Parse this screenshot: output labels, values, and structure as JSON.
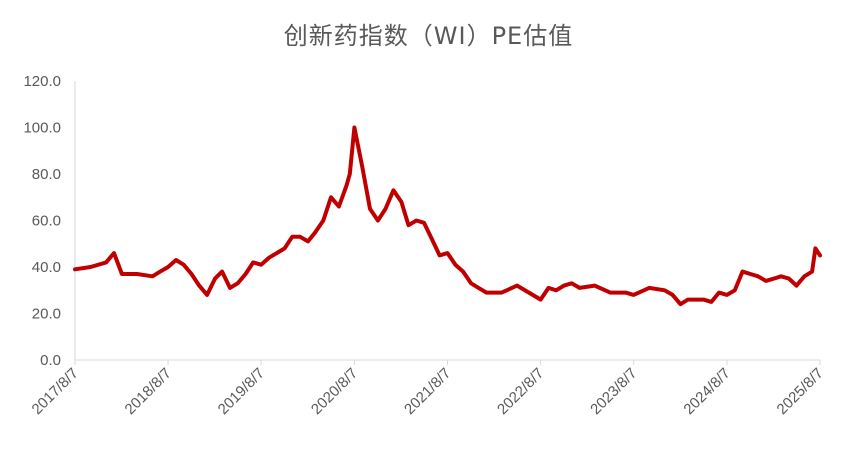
{
  "chart_data": {
    "type": "line",
    "title": "创新药指数（WI）PE估值",
    "xlabel": "",
    "ylabel": "",
    "ylim": [
      0,
      120
    ],
    "yticks": [
      "0.0",
      "20.0",
      "40.0",
      "60.0",
      "80.0",
      "100.0",
      "120.0"
    ],
    "xticks": [
      "2017/8/7",
      "2018/8/7",
      "2019/8/7",
      "2020/8/7",
      "2021/8/7",
      "2022/8/7",
      "2023/8/7",
      "2024/8/7",
      "2025/8/7"
    ],
    "grid": false,
    "legend": "none",
    "line_color": "#C00000",
    "series": [
      {
        "x": [
          "2017/8/7",
          "2017/10/7",
          "2017/12/7",
          "2018/1/7",
          "2018/2/7",
          "2018/4/7",
          "2018/6/7",
          "2018/7/7",
          "2018/8/7",
          "2018/9/7",
          "2018/10/7",
          "2018/11/7",
          "2018/12/7",
          "2019/1/7",
          "2019/2/7",
          "2019/3/7",
          "2019/4/7",
          "2019/5/7",
          "2019/6/7",
          "2019/7/7",
          "2019/8/7",
          "2019/9/7",
          "2019/10/7",
          "2019/11/7",
          "2019/12/7",
          "2020/1/7",
          "2020/2/7",
          "2020/3/7",
          "2020/4/7",
          "2020/5/7",
          "2020/6/7",
          "2020/7/7",
          "2020/7/20",
          "2020/8/7",
          "2020/9/7",
          "2020/10/7",
          "2020/11/7",
          "2020/12/7",
          "2021/1/7",
          "2021/2/7",
          "2021/3/7",
          "2021/4/7",
          "2021/5/7",
          "2021/6/7",
          "2021/7/7",
          "2021/8/7",
          "2021/9/7",
          "2021/10/7",
          "2021/11/7",
          "2021/12/7",
          "2022/1/7",
          "2022/3/7",
          "2022/5/7",
          "2022/7/7",
          "2022/8/7",
          "2022/9/7",
          "2022/10/7",
          "2022/11/7",
          "2022/12/7",
          "2023/1/7",
          "2023/3/7",
          "2023/5/7",
          "2023/7/7",
          "2023/8/7",
          "2023/10/7",
          "2023/12/7",
          "2024/1/7",
          "2024/2/7",
          "2024/3/7",
          "2024/5/7",
          "2024/6/7",
          "2024/7/7",
          "2024/8/7",
          "2024/9/7",
          "2024/10/7",
          "2024/11/7",
          "2024/12/7",
          "2025/1/7",
          "2025/2/7",
          "2025/3/7",
          "2025/4/7",
          "2025/5/7",
          "2025/6/7",
          "2025/7/7",
          "2025/7/20",
          "2025/8/7"
        ],
        "values": [
          39,
          40,
          42,
          46,
          37,
          37,
          36,
          38,
          40,
          43,
          41,
          37,
          32,
          28,
          35,
          38,
          31,
          33,
          37,
          42,
          41,
          44,
          46,
          48,
          53,
          53,
          51,
          55,
          60,
          70,
          66,
          75,
          80,
          100,
          83,
          65,
          60,
          65,
          73,
          68,
          58,
          60,
          59,
          52,
          45,
          46,
          41,
          38,
          33,
          31,
          29,
          29,
          32,
          28,
          26,
          31,
          30,
          32,
          33,
          31,
          32,
          29,
          29,
          28,
          31,
          30,
          28,
          24,
          26,
          26,
          25,
          29,
          28,
          30,
          38,
          37,
          36,
          34,
          35,
          36,
          35,
          32,
          36,
          38,
          48,
          45
        ]
      }
    ]
  }
}
